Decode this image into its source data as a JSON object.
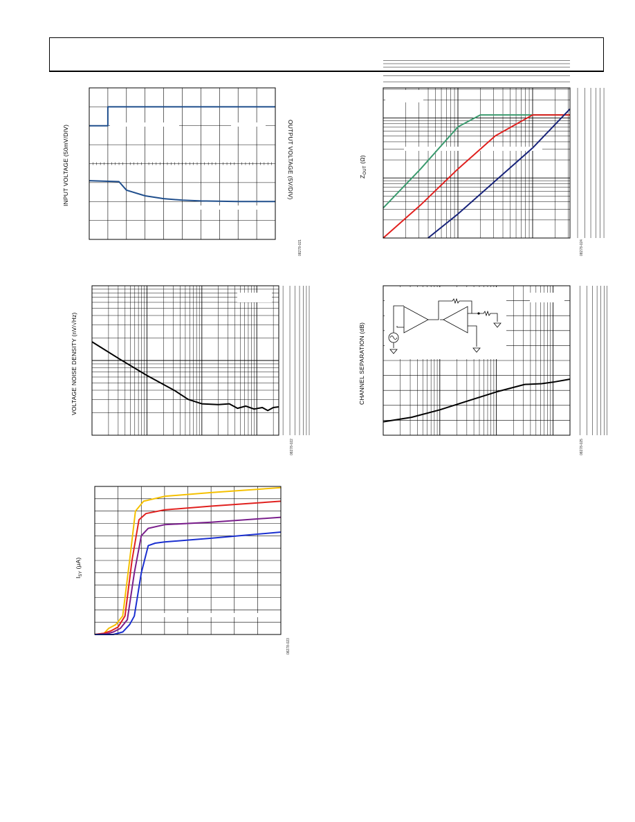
{
  "header": {
    "title": ""
  },
  "charts": {
    "c1": {
      "ylabel_left": "INPUT VOLTAGE (50mV/DIV)",
      "ylabel_right": "OUTPUT VOLTAGE (5V/DIV)",
      "fig_id": "08278-021"
    },
    "c2": {
      "ylabel_prefix": "Z",
      "ylabel_sub": "OUT",
      "ylabel_suffix": " (Ω)",
      "fig_id": "08278-024"
    },
    "c3": {
      "ylabel": "VOLTAGE NOISE DENSITY (nV/√Hz)",
      "fig_id": "08278-022"
    },
    "c4": {
      "ylabel": "CHANNEL SEPARATION (dB)",
      "fig_id": "08278-025"
    },
    "c5": {
      "ylabel_prefix": "I",
      "ylabel_sub": "SY",
      "ylabel_suffix": " (μA)",
      "fig_id": "08278-023"
    }
  },
  "chart_data": [
    {
      "type": "line",
      "id": "c1",
      "grid": true,
      "series": [
        {
          "values_x": [
            0,
            1.0,
            1.0,
            10.0
          ],
          "values_y": [
            6.0,
            6.0,
            7.0,
            7.0
          ],
          "color": "#1f4e8c"
        },
        {
          "values_x": [
            0,
            1.6,
            2.0,
            3.0,
            4.0,
            5.0,
            6.0,
            8.0,
            10.0
          ],
          "values_y": [
            3.1,
            3.05,
            2.6,
            2.3,
            2.15,
            2.07,
            2.03,
            2.0,
            2.0
          ],
          "color": "#1f4e8c"
        }
      ],
      "xlim": [
        0,
        10
      ],
      "ylim": [
        0,
        8
      ]
    },
    {
      "type": "line",
      "id": "c2",
      "grid": true,
      "log_x": true,
      "log_y": true,
      "series": [
        {
          "color": "#3a9a6e",
          "values_x": [
            0.0,
            0.5,
            1.0,
            1.3,
            2.0,
            2.5
          ],
          "values_y": [
            0.5,
            1.15,
            1.85,
            2.05,
            2.05,
            2.05
          ]
        },
        {
          "color": "#e0201e",
          "values_x": [
            0.0,
            0.5,
            1.0,
            1.5,
            2.0,
            2.5
          ],
          "values_y": [
            0.0,
            0.55,
            1.15,
            1.7,
            2.05,
            2.05
          ]
        },
        {
          "color": "#17237a",
          "values_x": [
            0.6,
            1.0,
            1.5,
            2.0,
            2.5
          ],
          "values_y": [
            0.0,
            0.4,
            0.95,
            1.5,
            2.15
          ]
        }
      ],
      "xlim": [
        0,
        2.5
      ],
      "ylim": [
        0,
        2.5
      ]
    },
    {
      "type": "line",
      "id": "c3",
      "grid": true,
      "log_x": true,
      "log_y": true,
      "series": [
        {
          "color": "#000000",
          "values_x": [
            0.0,
            0.5,
            1.0,
            1.5,
            1.75,
            2.0,
            2.3,
            2.5,
            2.65,
            2.8,
            2.95,
            3.1,
            3.2,
            3.3,
            3.4
          ],
          "values_y": [
            1.25,
            1.02,
            0.8,
            0.6,
            0.48,
            0.42,
            0.41,
            0.42,
            0.36,
            0.39,
            0.35,
            0.37,
            0.33,
            0.37,
            0.38
          ]
        }
      ],
      "xlim": [
        0,
        3.4
      ],
      "ylim": [
        0,
        2
      ]
    },
    {
      "type": "line",
      "id": "c4",
      "grid": true,
      "log_x": true,
      "series": [
        {
          "color": "#000000",
          "values_x": [
            0.0,
            0.5,
            1.0,
            1.5,
            2.0,
            2.5,
            2.8,
            3.0,
            3.3
          ],
          "values_y": [
            0.9,
            1.2,
            1.7,
            2.3,
            2.9,
            3.4,
            3.45,
            3.55,
            3.75
          ]
        }
      ],
      "xlim": [
        0,
        3.3
      ],
      "ylim": [
        0,
        10
      ]
    },
    {
      "type": "line",
      "id": "c5",
      "grid": true,
      "series": [
        {
          "color": "#f5c000",
          "values_x": [
            0,
            0.4,
            0.6,
            0.9,
            1.2,
            1.5,
            1.75,
            2.1,
            3,
            5,
            8
          ],
          "values_y": [
            0,
            0.1,
            0.5,
            0.8,
            1.5,
            6,
            10,
            10.8,
            11.2,
            11.5,
            11.9
          ]
        },
        {
          "color": "#e0201e",
          "values_x": [
            0,
            0.4,
            0.7,
            1.0,
            1.3,
            1.6,
            1.9,
            2.2,
            3,
            5,
            8
          ],
          "values_y": [
            0,
            0.1,
            0.3,
            0.6,
            1.5,
            6,
            9.3,
            9.8,
            10.1,
            10.4,
            10.8
          ]
        },
        {
          "color": "#7a1f8c",
          "values_x": [
            0,
            0.5,
            0.8,
            1.1,
            1.4,
            1.7,
            2.0,
            2.3,
            3,
            5,
            8
          ],
          "values_y": [
            0,
            0.05,
            0.2,
            0.5,
            1.2,
            5,
            8.0,
            8.6,
            8.9,
            9.1,
            9.5
          ]
        },
        {
          "color": "#1a2fd0",
          "values_x": [
            0,
            0.8,
            1.2,
            1.5,
            1.7,
            2.0,
            2.3,
            2.6,
            3,
            5,
            8
          ],
          "values_y": [
            0,
            0.0,
            0.2,
            0.8,
            1.5,
            5,
            7.2,
            7.4,
            7.5,
            7.8,
            8.3
          ]
        }
      ],
      "xlim": [
        0,
        8
      ],
      "ylim": [
        0,
        12
      ]
    }
  ]
}
